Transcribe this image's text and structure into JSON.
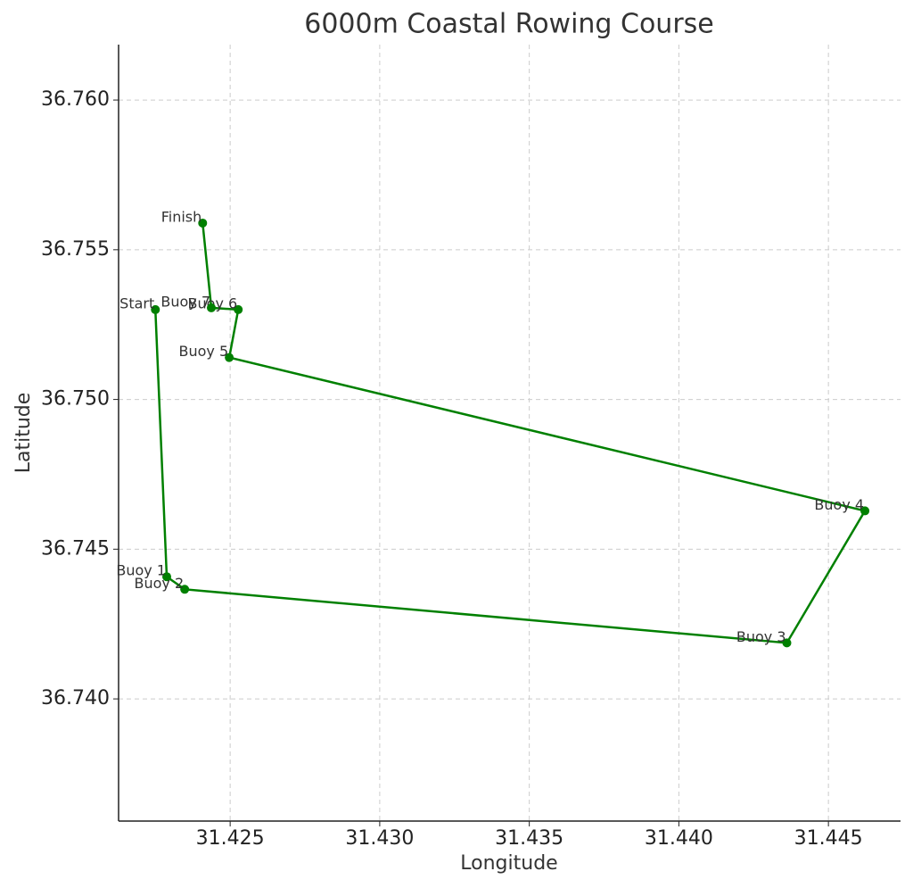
{
  "chart_data": {
    "type": "line",
    "title": "6000m Coastal Rowing Course",
    "x_label": "Longitude",
    "y_label": "Latitude",
    "point_labels": [
      "Start",
      "Buoy 1",
      "Buoy 2",
      "Buoy 3",
      "Buoy 4",
      "Buoy 5",
      "Buoy 6",
      "Buoy 7",
      "Finish"
    ],
    "x": [
      31.4225,
      31.42288,
      31.42348,
      31.44361,
      31.44622,
      31.42497,
      31.42527,
      31.42437,
      31.42408
    ],
    "values": [
      36.753,
      36.74408,
      36.74366,
      36.74187,
      36.74628,
      36.7514,
      36.753,
      36.75306,
      36.75589
    ],
    "color": "#008000",
    "xlim": [
      31.42127,
      31.44741
    ],
    "ylim": [
      36.73592,
      36.76185
    ],
    "xticks": [
      31.425,
      {
        "value": 31.43,
        "label": "31.430"
      },
      31.435,
      {
        "value": 31.44,
        "label": "31.440"
      },
      31.445
    ],
    "yticks": [
      {
        "value": 36.74,
        "label": "36.740"
      },
      36.745,
      {
        "value": 36.75,
        "label": "36.750"
      },
      36.755,
      {
        "value": 36.76,
        "label": "36.760"
      }
    ],
    "grid": true
  }
}
